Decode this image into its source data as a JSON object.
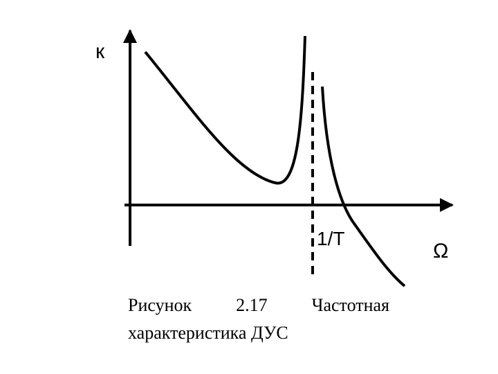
{
  "axes": {
    "y_label": "к",
    "x_label": "Ω",
    "marker_label": "1/T"
  },
  "caption": {
    "line1": "Рисунок 2.17 Частотная",
    "line2": "характеристика ДУС"
  }
}
